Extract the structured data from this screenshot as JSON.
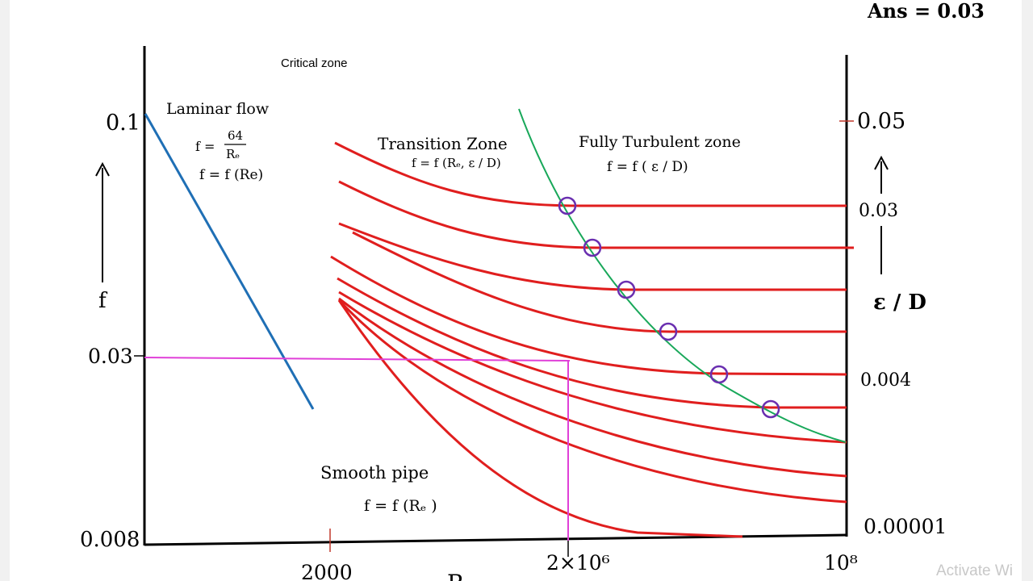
{
  "answer": "Ans = 0.03",
  "labels": {
    "critical_zone": "Critical zone",
    "laminar_flow": "Laminar flow",
    "laminar_formula_lhs": "f =",
    "laminar_formula_num": "64",
    "laminar_formula_den": "Rₑ",
    "laminar_formula2": "f = f (Re)",
    "transition_zone": "Transition Zone",
    "transition_formula": "f = f (Rₑ, ε / D)",
    "fully_turbulent_zone": "Fully Turbulent zone",
    "turbulent_formula": "f = f ( ε / D)",
    "smooth_pipe": "Smooth pipe",
    "smooth_formula": "f = f (Rₑ )"
  },
  "axes": {
    "left_label": "f",
    "right_label": "ε / D",
    "left_ticks": [
      "0.1",
      "0.03",
      "0.008"
    ],
    "right_ticks": [
      "0.05",
      "0.03",
      "0.004",
      "0.00001"
    ],
    "bottom_ticks": [
      "2000",
      "2×10⁶",
      "10⁸"
    ],
    "bottom_label_partial": "R"
  },
  "colors": {
    "axis": "#000000",
    "laminar_line": "#1f6fb5",
    "turbulent_curves": "#e01e1e",
    "boundary_curve": "#19a85a",
    "reading_line": "#e040d8",
    "markers": "#6a2fb0"
  },
  "watermark": "Activate Wi"
}
